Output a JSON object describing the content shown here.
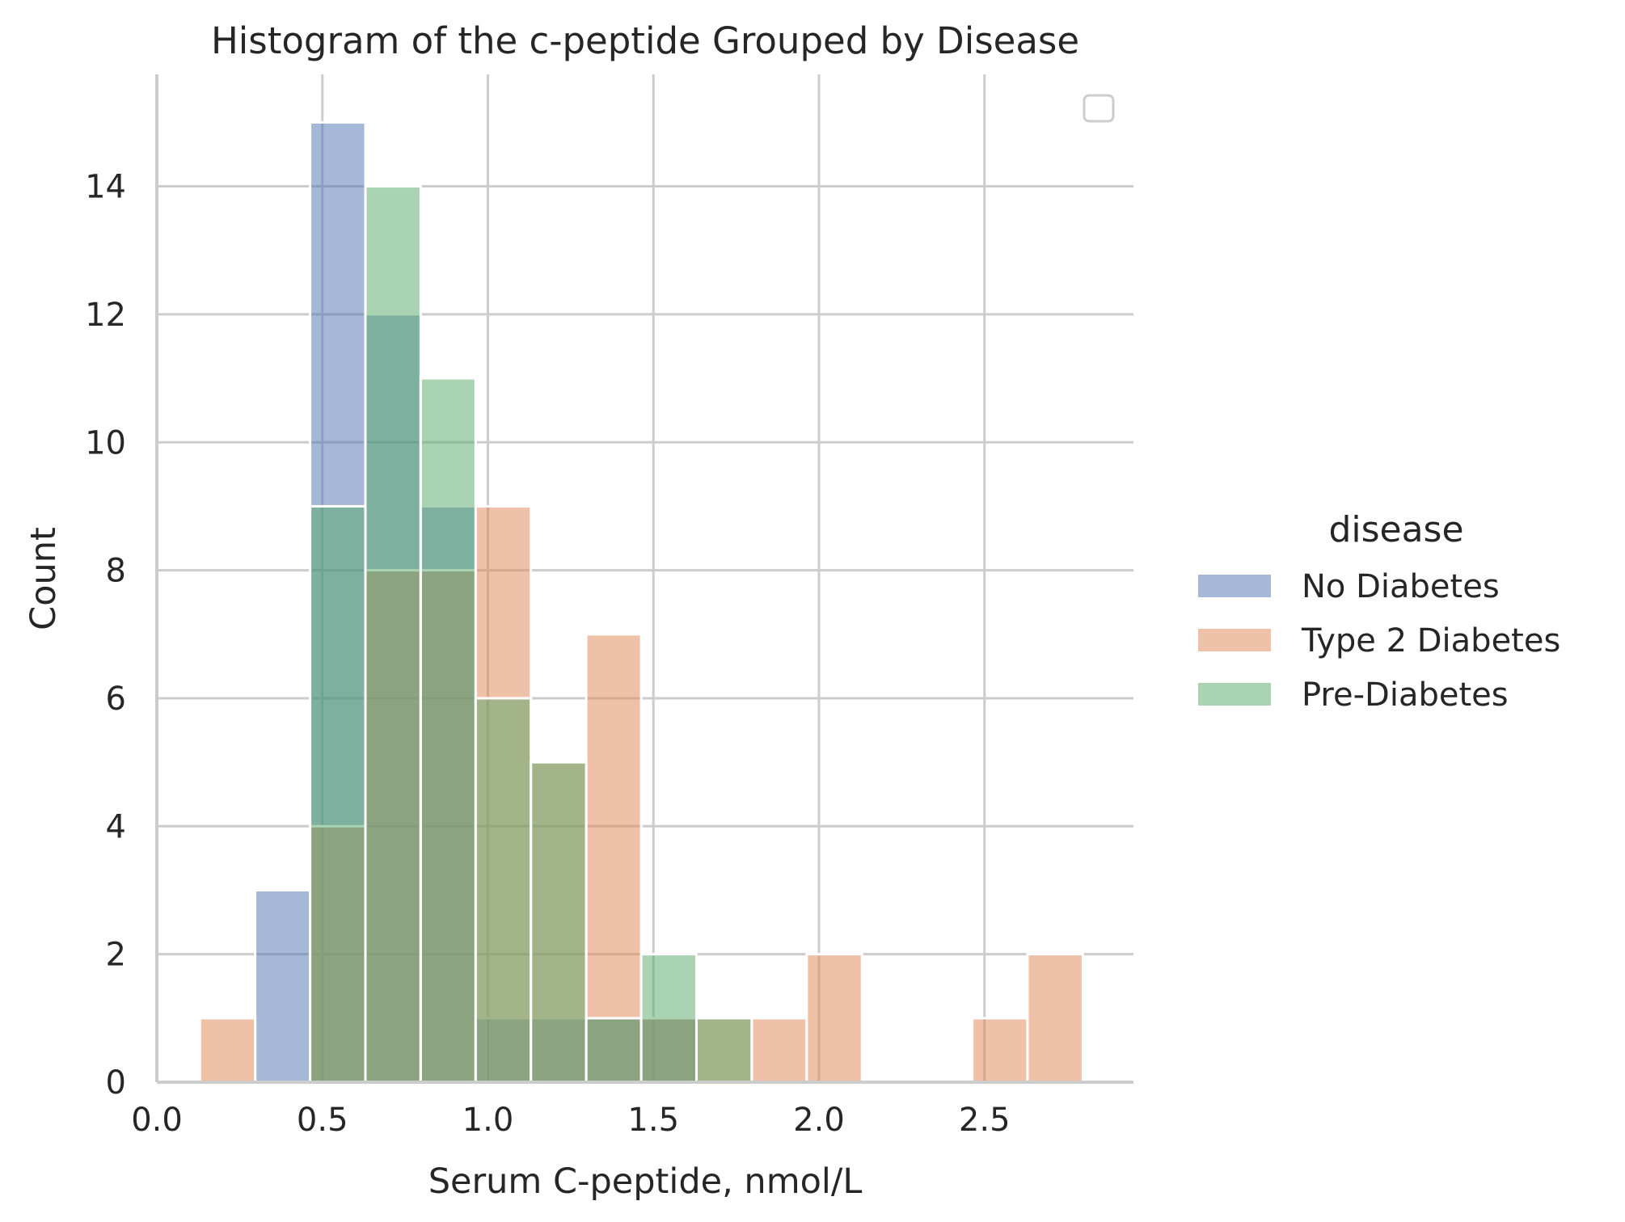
{
  "chart_data": {
    "type": "bar",
    "subtype": "overlaid-histogram",
    "title": "Histogram of the c-peptide Grouped by Disease",
    "xlabel": "Serum C-peptide, nmol/L",
    "ylabel": "Count",
    "xlim": [
      0.0,
      2.95
    ],
    "ylim": [
      0,
      15.75
    ],
    "x_ticks": [
      "0.0",
      "0.5",
      "1.0",
      "1.5",
      "2.0",
      "2.5"
    ],
    "x_tick_values": [
      0.0,
      0.5,
      1.0,
      1.5,
      2.0,
      2.5
    ],
    "y_ticks": [
      "0",
      "2",
      "4",
      "6",
      "8",
      "10",
      "12",
      "14"
    ],
    "y_tick_values": [
      0,
      2,
      4,
      6,
      8,
      10,
      12,
      14
    ],
    "grid": true,
    "bin_edges": [
      0.13,
      0.297,
      0.463,
      0.63,
      0.797,
      0.963,
      1.13,
      1.297,
      1.463,
      1.63,
      1.797,
      1.963,
      2.13,
      2.297,
      2.463,
      2.63,
      2.797
    ],
    "legend": {
      "title": "disease",
      "placement": "right",
      "entries": [
        "No Diabetes",
        "Type 2 Diabetes",
        "Pre-Diabetes"
      ]
    },
    "series": [
      {
        "name": "No Diabetes",
        "color": "#4c72b0",
        "values": [
          0,
          3,
          15,
          12,
          9,
          1,
          1,
          1,
          1,
          0,
          0,
          0,
          0,
          0,
          0,
          0
        ]
      },
      {
        "name": "Type 2 Diabetes",
        "color": "#dd8452",
        "values": [
          1,
          0,
          4,
          8,
          8,
          9,
          5,
          7,
          1,
          1,
          1,
          2,
          0,
          0,
          1,
          2
        ]
      },
      {
        "name": "Pre-Diabetes",
        "color": "#55a868",
        "values": [
          0,
          0,
          9,
          14,
          11,
          6,
          5,
          1,
          2,
          1,
          0,
          0,
          0,
          0,
          0,
          0
        ]
      }
    ]
  }
}
